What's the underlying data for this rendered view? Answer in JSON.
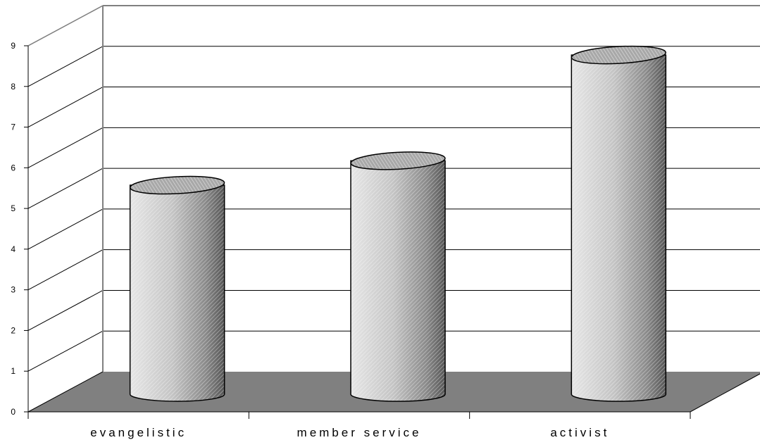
{
  "chart_data": {
    "type": "bar",
    "style": "3d-cylinder",
    "categories": [
      "evangelistic",
      "member service",
      "activist"
    ],
    "values": [
      5.4,
      6.0,
      8.6
    ],
    "ylim": [
      0,
      9
    ],
    "yticks": [
      0,
      1,
      2,
      3,
      4,
      5,
      6,
      7,
      8,
      9
    ],
    "grid": true,
    "legend": "none",
    "colors": {
      "floor": "#808080",
      "gridline": "#000000",
      "bar_fill": "#c0c0c0",
      "bar_top": "#a6a6a6"
    }
  }
}
